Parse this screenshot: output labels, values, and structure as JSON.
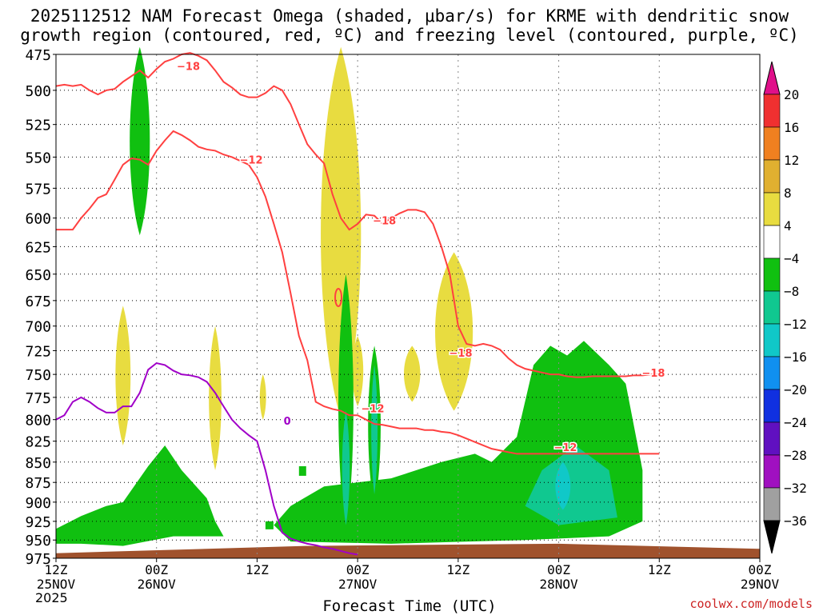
{
  "chart_data": {
    "type": "heatmap",
    "title": "2025112512 NAM Forecast Omega (shaded, μbar/s) for KRME with dendritic snow",
    "subtitle": "growth region (contoured, red, ºC) and freezing level (contoured, purple, ºC)",
    "xlabel": "Forecast Time (UTC)",
    "ylabel": "",
    "y_scale": "pressure (inverted, log-p)",
    "ylim": [
      975,
      475
    ],
    "y_ticks": [
      "475",
      "500",
      "525",
      "550",
      "575",
      "600",
      "625",
      "650",
      "675",
      "700",
      "725",
      "750",
      "775",
      "800",
      "825",
      "850",
      "875",
      "900",
      "925",
      "950",
      "975"
    ],
    "x_ticks": [
      {
        "top": "12Z",
        "mid": "25NOV",
        "bot": "2025"
      },
      {
        "top": "00Z",
        "mid": "26NOV",
        "bot": ""
      },
      {
        "top": "12Z",
        "mid": "",
        "bot": ""
      },
      {
        "top": "00Z",
        "mid": "27NOV",
        "bot": ""
      },
      {
        "top": "12Z",
        "mid": "",
        "bot": ""
      },
      {
        "top": "00Z",
        "mid": "28NOV",
        "bot": ""
      },
      {
        "top": "12Z",
        "mid": "",
        "bot": ""
      },
      {
        "top": "00Z",
        "mid": "29NOV",
        "bot": ""
      }
    ],
    "colorbar": {
      "labels": [
        "20",
        "16",
        "12",
        "8",
        "4",
        "−4",
        "−8",
        "−12",
        "−16",
        "−20",
        "−24",
        "−28",
        "−32",
        "−36"
      ],
      "colors": [
        "#e0108a",
        "#f03030",
        "#f08020",
        "#e0b030",
        "#e8dc40",
        "#ffffff",
        "#10c010",
        "#10c890",
        "#10c8c8",
        "#1090f0",
        "#1030e0",
        "#6010c0",
        "#a010c0",
        "#a0a0a0",
        "#000000"
      ]
    },
    "contour_labels": [
      {
        "text": "−18",
        "color": "#ff4040"
      },
      {
        "text": "−12",
        "color": "#ff4040"
      },
      {
        "text": "−18",
        "color": "#ff4040"
      },
      {
        "text": "−12",
        "color": "#ff4040"
      },
      {
        "text": "−18",
        "color": "#ff4040"
      },
      {
        "text": "−12",
        "color": "#ff4040"
      },
      {
        "text": "−18",
        "color": "#ff4040"
      },
      {
        "text": "0",
        "color": "#a000c8"
      }
    ],
    "series": [
      {
        "kind": "contour",
        "level": "-18",
        "color": "#ff4040",
        "x": [
          0,
          1,
          2,
          3,
          4,
          5,
          6,
          7,
          8,
          9,
          10,
          11,
          12,
          13,
          14,
          15,
          16,
          17,
          18,
          19,
          20,
          21,
          22,
          23,
          24,
          25,
          26,
          27,
          28,
          29,
          30,
          31,
          32,
          33,
          34,
          35,
          36,
          37,
          38,
          39,
          40,
          41,
          42,
          43,
          44,
          45,
          46,
          47,
          48,
          49,
          50,
          51,
          52,
          53,
          54,
          55,
          56,
          57,
          58,
          59,
          60,
          61,
          62,
          63,
          64,
          65,
          66,
          67,
          68,
          69,
          70,
          71,
          72
        ],
        "p": [
          497,
          496,
          497,
          496,
          500,
          503,
          500,
          499,
          494,
          490,
          486,
          491,
          485,
          480,
          478,
          475,
          474,
          476,
          479,
          486,
          494,
          498,
          503,
          505,
          505,
          502,
          497,
          500,
          510,
          525,
          540,
          548,
          555,
          580,
          600,
          610,
          605,
          597,
          598,
          605,
          600,
          596,
          593,
          593,
          595,
          605,
          625,
          650,
          700,
          718,
          720,
          718,
          720,
          724,
          733,
          740,
          744,
          746,
          748,
          750,
          750,
          752,
          753,
          753,
          752,
          752,
          752,
          752,
          752,
          751,
          751,
          750,
          750
        ]
      },
      {
        "kind": "contour",
        "level": "-12",
        "color": "#ff4040",
        "x": [
          0,
          1,
          2,
          3,
          4,
          5,
          6,
          7,
          8,
          9,
          10,
          11,
          12,
          13,
          14,
          15,
          16,
          17,
          18,
          19,
          20,
          21,
          22,
          23,
          24,
          25,
          26,
          27,
          28,
          29,
          30,
          31,
          32,
          33,
          34,
          35,
          36,
          37,
          38,
          39,
          40,
          41,
          42,
          43,
          44,
          45,
          46,
          47,
          48,
          49,
          50,
          51,
          52,
          53,
          54,
          55,
          56,
          57,
          58,
          59,
          60,
          61,
          62,
          63,
          64,
          65,
          66,
          67,
          68,
          69,
          70,
          71,
          72
        ],
        "p": [
          610,
          610,
          610,
          600,
          592,
          583,
          580,
          568,
          556,
          551,
          552,
          556,
          545,
          537,
          530,
          533,
          537,
          542,
          544,
          545,
          548,
          550,
          553,
          556,
          566,
          582,
          605,
          630,
          668,
          710,
          735,
          780,
          785,
          788,
          790,
          795,
          795,
          800,
          805,
          806,
          808,
          810,
          810,
          810,
          812,
          812,
          814,
          815,
          818,
          822,
          826,
          830,
          834,
          836,
          838,
          840,
          840,
          840,
          840,
          840,
          840,
          840,
          840,
          840,
          840,
          840,
          840,
          840,
          840,
          840,
          840,
          840,
          840
        ]
      },
      {
        "kind": "contour",
        "level": "0",
        "color": "#a000c8",
        "x": [
          0,
          1,
          2,
          3,
          4,
          5,
          6,
          7,
          8,
          9,
          10,
          11,
          12,
          13,
          14,
          15,
          16,
          17,
          18,
          19,
          20,
          21,
          22,
          23,
          24,
          25,
          26,
          27,
          28,
          29,
          30,
          31,
          32,
          33,
          34,
          35,
          36
        ],
        "p": [
          800,
          795,
          780,
          775,
          780,
          787,
          792,
          792,
          785,
          785,
          770,
          745,
          738,
          740,
          746,
          750,
          751,
          753,
          758,
          770,
          785,
          800,
          810,
          818,
          825,
          860,
          905,
          940,
          948,
          952,
          955,
          957,
          960,
          962,
          965,
          968,
          970
        ]
      },
      {
        "kind": "omega_shaded",
        "bands": [
          "<-4 green",
          "-8..-12 teal",
          "4..8 yellow"
        ]
      }
    ]
  }
}
